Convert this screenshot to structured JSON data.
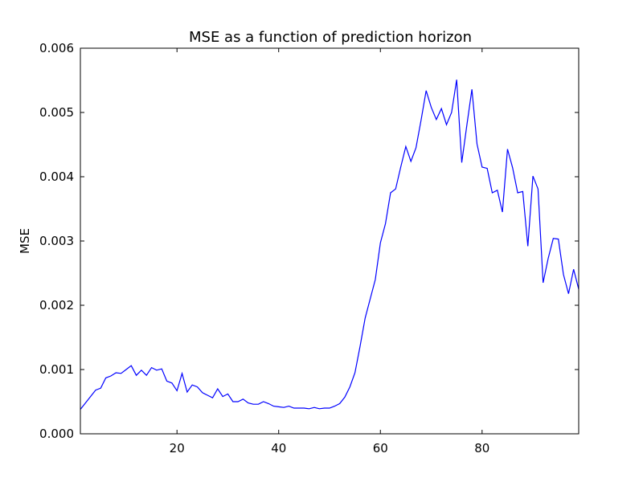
{
  "chart_data": {
    "type": "line",
    "title": "MSE as a function of prediction horizon",
    "xlabel": "",
    "ylabel": "MSE",
    "xlim": [
      1,
      99
    ],
    "ylim": [
      0,
      0.006
    ],
    "grid": false,
    "x_ticks": [
      20,
      40,
      60,
      80
    ],
    "x_tick_labels": [
      "20",
      "40",
      "60",
      "80"
    ],
    "y_ticks": [
      0,
      0.001,
      0.002,
      0.003,
      0.004,
      0.005,
      0.006
    ],
    "y_tick_labels": [
      "0.000",
      "0.001",
      "0.002",
      "0.003",
      "0.004",
      "0.005",
      "0.006"
    ],
    "line_color": "#0000ff",
    "series": [
      {
        "x": [
          1,
          2,
          3,
          4,
          5,
          6,
          7,
          8,
          9,
          10,
          11,
          12,
          13,
          14,
          15,
          16,
          17,
          18,
          19,
          20,
          21,
          22,
          23,
          24,
          25,
          26,
          27,
          28,
          29,
          30,
          31,
          32,
          33,
          34,
          35,
          36,
          37,
          38,
          39,
          40,
          41,
          42,
          43,
          44,
          45,
          46,
          47,
          48,
          49,
          50,
          51,
          52,
          53,
          54,
          55,
          56,
          57,
          58,
          59,
          60,
          61,
          62,
          63,
          64,
          65,
          66,
          67,
          68,
          69,
          70,
          71,
          72,
          73,
          74,
          75,
          76,
          77,
          78,
          79,
          80,
          81,
          82,
          83,
          84,
          85,
          86,
          87,
          88,
          89,
          90,
          91,
          92,
          93,
          94,
          95,
          96,
          97,
          98,
          99
        ],
        "values": [
          0.00038,
          0.00048,
          0.00058,
          0.00068,
          0.00071,
          0.00087,
          0.0009,
          0.00095,
          0.00094,
          0.001,
          0.00106,
          0.00091,
          0.00099,
          0.00091,
          0.00103,
          0.00099,
          0.00101,
          0.00082,
          0.00079,
          0.00067,
          0.00094,
          0.00065,
          0.00076,
          0.00073,
          0.00064,
          0.0006,
          0.00056,
          0.0007,
          0.00058,
          0.00062,
          0.0005,
          0.0005,
          0.00054,
          0.00048,
          0.00046,
          0.00046,
          0.0005,
          0.00047,
          0.00043,
          0.00042,
          0.00041,
          0.00043,
          0.0004,
          0.0004,
          0.0004,
          0.00039,
          0.00041,
          0.00039,
          0.0004,
          0.0004,
          0.00043,
          0.00047,
          0.00057,
          0.00073,
          0.00095,
          0.00136,
          0.0018,
          0.0021,
          0.0024,
          0.00297,
          0.00327,
          0.00375,
          0.00381,
          0.00415,
          0.00447,
          0.00424,
          0.00445,
          0.00488,
          0.00534,
          0.00508,
          0.00489,
          0.00506,
          0.00481,
          0.005,
          0.00551,
          0.00422,
          0.0048,
          0.00536,
          0.00451,
          0.00415,
          0.00413,
          0.00375,
          0.00379,
          0.00345,
          0.00443,
          0.00414,
          0.00375,
          0.00377,
          0.00292,
          0.00401,
          0.00381,
          0.00235,
          0.00273,
          0.00304,
          0.00303,
          0.00248,
          0.00218,
          0.00256,
          0.00225
        ]
      }
    ]
  }
}
